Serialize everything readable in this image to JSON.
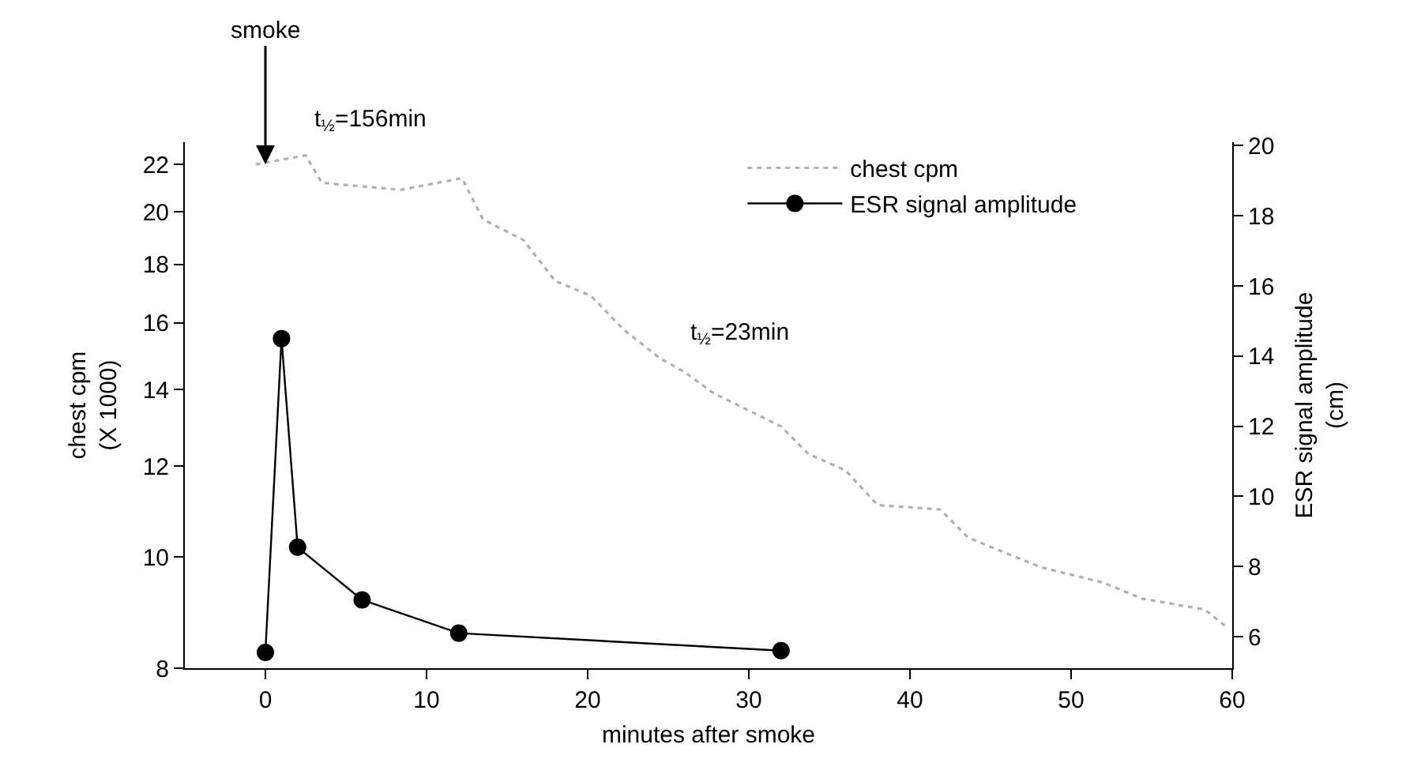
{
  "chart_data": {
    "type": "line",
    "xlabel": "minutes after smoke",
    "ylabel": "chest cpm\n(X 1000)",
    "y2label": "ESR signal amplitude\n(cm)",
    "xlim": [
      -5,
      60
    ],
    "xticks": [
      0,
      10,
      20,
      30,
      40,
      50,
      60
    ],
    "ylim": [
      8,
      23
    ],
    "yticks": [
      8,
      10,
      12,
      14,
      16,
      18,
      20,
      22
    ],
    "log": "y",
    "y2lim": [
      5.1,
      20.1
    ],
    "y2ticks": [
      6,
      8,
      10,
      12,
      14,
      16,
      18,
      20
    ],
    "legend": "top right",
    "series": [
      {
        "name": "chest cpm",
        "color": "#b0b0b0",
        "marker": "none",
        "line_style": "dotted",
        "x": [
          -0.6,
          2.5,
          3.5,
          8.4,
          12.2,
          13.5,
          16,
          18,
          20.2,
          22.2,
          24.5,
          26,
          27.8,
          32,
          33.7,
          36,
          38,
          41.9,
          43.6,
          45.8,
          48.1,
          52,
          54.4,
          58.3,
          59.6
        ],
        "values": [
          22,
          22.4,
          21.2,
          20.9,
          21.4,
          19.7,
          18.9,
          17.4,
          16.9,
          15.8,
          14.9,
          14.5,
          13.9,
          13,
          12.3,
          11.9,
          11.1,
          11,
          10.4,
          10.1,
          9.8,
          9.5,
          9.2,
          9.0,
          8.7
        ]
      },
      {
        "name": "ESR signal amplitude",
        "color": "#000000",
        "marker": "circle",
        "line_style": "solid",
        "axis": "y2",
        "x": [
          0,
          1,
          2,
          6,
          12,
          32
        ],
        "values": [
          5.55,
          14.5,
          8.55,
          7.05,
          6.1,
          5.6
        ]
      }
    ],
    "annotations": [
      {
        "text": "smoke",
        "x": 0,
        "y": 22
      },
      "t$_{½}$=156min",
      "t$_{½}$=23min"
    ]
  }
}
